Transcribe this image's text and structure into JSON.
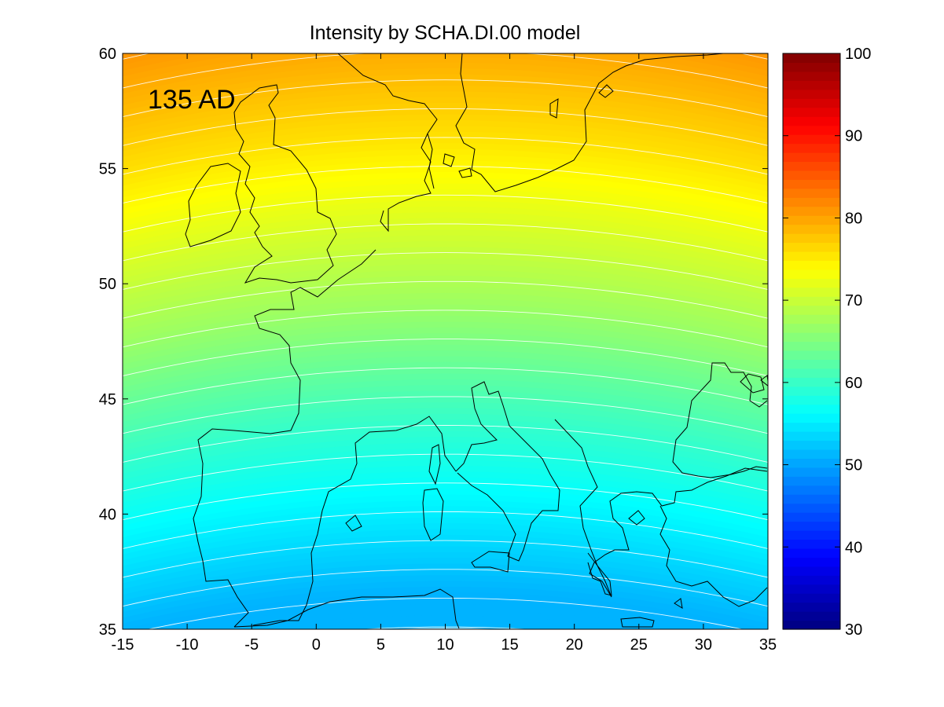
{
  "chart_data": {
    "type": "heatmap",
    "title": "Intensity by SCHA.DI.00 model",
    "annotation": "135 AD",
    "xlim": [
      -15,
      35
    ],
    "ylim": [
      35,
      60
    ],
    "x_ticks": [
      "-15",
      "-10",
      "-5",
      "0",
      "5",
      "10",
      "15",
      "20",
      "25",
      "30",
      "35"
    ],
    "y_ticks": [
      "35",
      "40",
      "45",
      "50",
      "55",
      "60"
    ],
    "colorbar": {
      "range": [
        30,
        100
      ],
      "ticks": [
        "30",
        "40",
        "50",
        "60",
        "70",
        "80",
        "90",
        "100"
      ],
      "colormap": "jet"
    },
    "contour_lines": "white",
    "coastlines": "black",
    "field_samples": [
      {
        "lat": 60,
        "value": 81
      },
      {
        "lat": 57.5,
        "value": 78.5
      },
      {
        "lat": 55,
        "value": 76
      },
      {
        "lat": 52.5,
        "value": 73
      },
      {
        "lat": 50,
        "value": 70
      },
      {
        "lat": 47.5,
        "value": 67
      },
      {
        "lat": 45,
        "value": 63.5
      },
      {
        "lat": 42.5,
        "value": 60
      },
      {
        "lat": 40,
        "value": 57
      },
      {
        "lat": 37.5,
        "value": 54
      },
      {
        "lat": 35,
        "value": 51
      }
    ]
  }
}
